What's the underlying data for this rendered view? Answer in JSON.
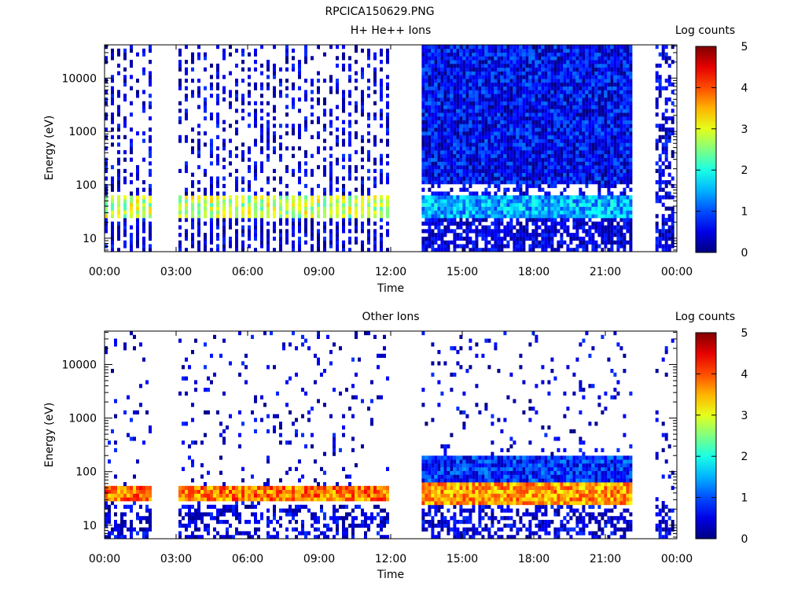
{
  "figure_title": "RPCICA150629.PNG",
  "chart_data": [
    {
      "type": "heatmap",
      "title": "H+ He++ Ions",
      "xlabel": "Time",
      "ylabel": "Energy (eV)",
      "y_scale": "log",
      "ylim": [
        5.6,
        42000
      ],
      "xlim": [
        "00:00",
        "24:00"
      ],
      "xticks": [
        "00:00",
        "03:00",
        "06:00",
        "09:00",
        "12:00",
        "15:00",
        "18:00",
        "21:00",
        "00:00"
      ],
      "yticks": [
        "10",
        "100",
        "1000",
        "10000"
      ],
      "colorbar": {
        "label": "Log counts",
        "range": [
          0,
          5
        ],
        "ticks": [
          "0",
          "1",
          "2",
          "3",
          "4",
          "5"
        ],
        "colormap": "jet"
      },
      "coverage_hours": [
        [
          0.0,
          1.85
        ],
        [
          3.1,
          11.9
        ],
        [
          13.3,
          22.1
        ],
        [
          23.1,
          23.8
        ]
      ],
      "data_gaps_hours": [
        [
          1.85,
          3.1
        ],
        [
          11.9,
          13.3
        ],
        [
          22.1,
          23.1
        ]
      ],
      "bands": [
        {
          "hours": [
            0.0,
            11.9
          ],
          "energy_eV": [
            25,
            60
          ],
          "log_counts": 2.8,
          "note": ""
        },
        {
          "hours": [
            13.3,
            22.1
          ],
          "energy_eV": [
            25,
            60
          ],
          "log_counts": 1.5,
          "note": ""
        },
        {
          "hours": [
            13.3,
            22.1
          ],
          "energy_eV": [
            100,
            40000
          ],
          "log_counts": 0.6,
          "note": ""
        }
      ]
    },
    {
      "type": "heatmap",
      "title": "Other Ions",
      "xlabel": "Time",
      "ylabel": "Energy (eV)",
      "y_scale": "log",
      "ylim": [
        5.6,
        42000
      ],
      "xlim": [
        "00:00",
        "24:00"
      ],
      "xticks": [
        "00:00",
        "03:00",
        "06:00",
        "09:00",
        "12:00",
        "15:00",
        "18:00",
        "21:00",
        "00:00"
      ],
      "yticks": [
        "10",
        "100",
        "1000",
        "10000"
      ],
      "colorbar": {
        "label": "Log counts",
        "range": [
          0,
          5
        ],
        "ticks": [
          "0",
          "1",
          "2",
          "3",
          "4",
          "5"
        ],
        "colormap": "jet"
      },
      "coverage_hours": [
        [
          0.0,
          1.85
        ],
        [
          3.1,
          11.9
        ],
        [
          13.3,
          22.1
        ],
        [
          23.1,
          23.8
        ]
      ],
      "data_gaps_hours": [
        [
          1.85,
          3.1
        ],
        [
          11.9,
          13.3
        ],
        [
          22.1,
          23.1
        ]
      ],
      "bands": [
        {
          "hours": [
            0.0,
            11.9
          ],
          "energy_eV": [
            28,
            55
          ],
          "log_counts": 3.8
        },
        {
          "hours": [
            13.3,
            22.1
          ],
          "energy_eV": [
            25,
            60
          ],
          "log_counts": 3.6
        },
        {
          "hours": [
            13.3,
            22.1
          ],
          "energy_eV": [
            60,
            200
          ],
          "log_counts": 0.8
        }
      ]
    }
  ]
}
